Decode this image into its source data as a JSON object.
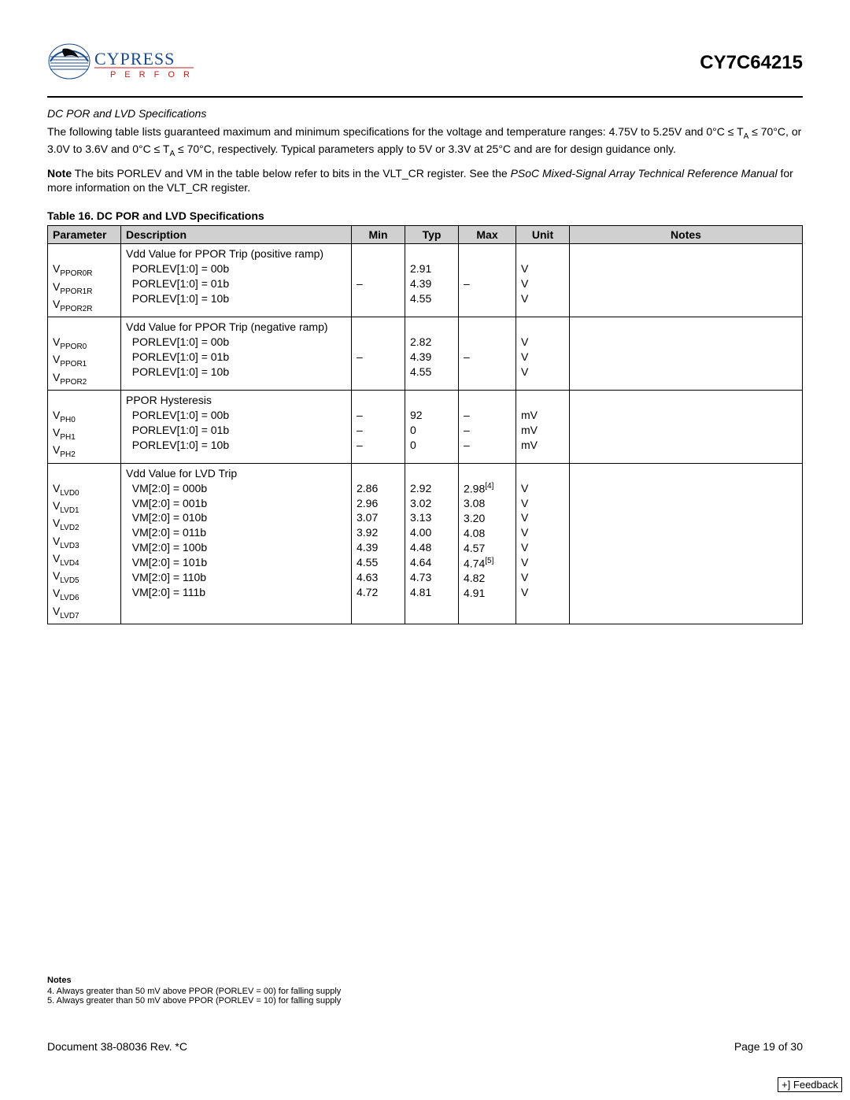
{
  "header": {
    "brand": "CYPRESS",
    "brand_sub": "PERFORM",
    "part_number": "CY7C64215"
  },
  "section": {
    "title": "DC POR and LVD Specifications",
    "intro_line1": "The following table lists guaranteed maximum and minimum specifications for the voltage and temperature ranges: 4.75V to 5.25V",
    "intro_line2_a": "and 0°C ≤ T",
    "intro_line2_sub": "A",
    "intro_line2_b": " ≤ 70°C, or 3.0V to 3.6V and 0°C ≤ T",
    "intro_line2_sub2": "A",
    "intro_line2_c": " ≤ 70°C, respectively. Typical parameters apply to 5V or 3.3V at 25°C and are for design guidance only.",
    "note_prefix": "Note",
    "note_a": " The bits PORLEV and VM in the table below refer to bits in the VLT_CR register. See the ",
    "note_italic": "PSoC Mixed-Signal Array Technical Reference Manual",
    "note_b": " for more information on the VLT_CR register."
  },
  "table": {
    "caption": "Table 16.  DC POR and LVD Specifications",
    "headers": [
      "Parameter",
      "Description",
      "Min",
      "Typ",
      "Max",
      "Unit",
      "Notes"
    ],
    "rows": [
      {
        "params": [
          "V|PPOR0R",
          "V|PPOR1R",
          "V|PPOR2R"
        ],
        "desc_head": "Vdd Value for PPOR Trip (positive ramp)",
        "desc_lines": [
          "PORLEV[1:0] = 00b",
          "PORLEV[1:0] = 01b",
          "PORLEV[1:0] = 10b"
        ],
        "min": [
          "–"
        ],
        "typ": [
          "2.91",
          "4.39",
          "4.55"
        ],
        "max": [
          "–"
        ],
        "unit": [
          "V",
          "V",
          "V"
        ],
        "notes": ""
      },
      {
        "params": [
          "V|PPOR0",
          "V|PPOR1",
          "V|PPOR2"
        ],
        "desc_head": "Vdd Value for PPOR Trip (negative ramp)",
        "desc_lines": [
          "PORLEV[1:0] = 00b",
          "PORLEV[1:0] = 01b",
          "PORLEV[1:0] = 10b"
        ],
        "min": [
          "–"
        ],
        "typ": [
          "2.82",
          "4.39",
          "4.55"
        ],
        "max": [
          "–"
        ],
        "unit": [
          "V",
          "V",
          "V"
        ],
        "notes": ""
      },
      {
        "params": [
          "V|PH0",
          "V|PH1",
          "V|PH2"
        ],
        "desc_head": "PPOR Hysteresis",
        "desc_lines": [
          "PORLEV[1:0] = 00b",
          "PORLEV[1:0] = 01b",
          "PORLEV[1:0] = 10b"
        ],
        "min": [
          "–",
          "–",
          "–"
        ],
        "typ": [
          "92",
          "0",
          "0"
        ],
        "max": [
          "–",
          "–",
          "–"
        ],
        "unit": [
          "mV",
          "mV",
          "mV"
        ],
        "notes": ""
      },
      {
        "params": [
          "V|LVD0",
          "V|LVD1",
          "V|LVD2",
          "V|LVD3",
          "V|LVD4",
          "V|LVD5",
          "V|LVD6",
          "V|LVD7"
        ],
        "desc_head": "Vdd Value for LVD Trip",
        "desc_lines": [
          "VM[2:0] = 000b",
          "VM[2:0] = 001b",
          "VM[2:0] = 010b",
          "VM[2:0] = 011b",
          "VM[2:0] = 100b",
          "VM[2:0] = 101b",
          "VM[2:0] = 110b",
          "VM[2:0] = 111b"
        ],
        "min": [
          "2.86",
          "2.96",
          "3.07",
          "3.92",
          "4.39",
          "4.55",
          "4.63",
          "4.72"
        ],
        "typ": [
          "2.92",
          "3.02",
          "3.13",
          "4.00",
          "4.48",
          "4.64",
          "4.73",
          "4.81"
        ],
        "max": [
          "2.98^[4]",
          "3.08",
          "3.20",
          "4.08",
          "4.57",
          "4.74^[5]",
          "4.82",
          "4.91"
        ],
        "unit": [
          "V",
          "V",
          "V",
          "V",
          "V",
          "V",
          "V",
          "V"
        ],
        "notes": ""
      }
    ]
  },
  "footnotes": {
    "title": "Notes",
    "lines": [
      "4.  Always greater than 50 mV above PPOR (PORLEV = 00) for falling supply",
      "5.  Always greater than 50 mV above PPOR (PORLEV = 10) for falling supply"
    ]
  },
  "footer": {
    "doc": "Document 38-08036 Rev. *C",
    "page": "Page 19 of 30"
  },
  "feedback": "+] Feedback"
}
